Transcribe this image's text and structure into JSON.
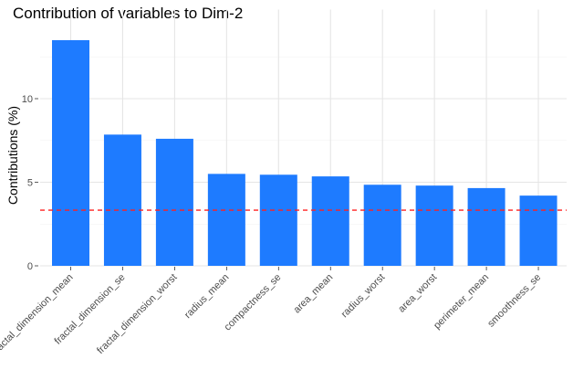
{
  "chart_data": {
    "type": "bar",
    "title": "Contribution of variables to Dim-2",
    "xlabel": "",
    "ylabel": "Contributions (%)",
    "ylim": [
      0,
      15
    ],
    "yticks": [
      0,
      5,
      10
    ],
    "ytick_labels": [
      "0",
      "5",
      "10"
    ],
    "grid": true,
    "categories": [
      "fractal_dimension_mean",
      "fractal_dimension_se",
      "fractal_dimension_worst",
      "radius_mean",
      "compactness_se",
      "area_mean",
      "radius_worst",
      "area_worst",
      "perimeter_mean",
      "smoothness_se"
    ],
    "values": [
      13.5,
      7.85,
      7.6,
      5.5,
      5.45,
      5.35,
      4.85,
      4.8,
      4.65,
      4.2
    ],
    "reference_line": 3.33,
    "bar_color": "#1e7bff",
    "reference_line_color": "#ff2020"
  }
}
